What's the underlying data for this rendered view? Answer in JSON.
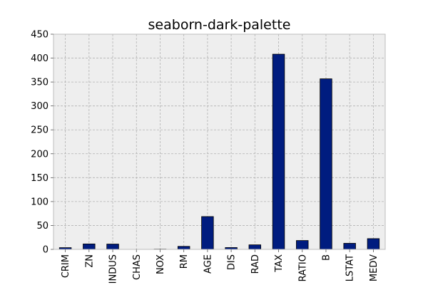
{
  "chart_data": {
    "type": "bar",
    "title": "seaborn-dark-palette",
    "xlabel": "",
    "ylabel": "",
    "categories": [
      "CRIM",
      "ZN",
      "INDUS",
      "CHAS",
      "NOX",
      "RM",
      "AGE",
      "DIS",
      "RAD",
      "TAX",
      "RATIO",
      "B",
      "LSTAT",
      "MEDV"
    ],
    "values": [
      3.6,
      11.4,
      11.1,
      0.07,
      0.55,
      6.3,
      68.6,
      3.8,
      9.5,
      408.2,
      18.5,
      356.7,
      12.7,
      22.5
    ],
    "ylim": [
      0,
      450
    ],
    "yticks": [
      0,
      50,
      100,
      150,
      200,
      250,
      300,
      350,
      400,
      450
    ],
    "grid": true,
    "legend": "none",
    "colors": {
      "bar": "#001c7f",
      "bar_edge": "#000000",
      "plot_background": "#eeeeee",
      "grid": "#b2b2b2",
      "axes_edge": "#bcbcbc",
      "figure_background": "#ffffff"
    }
  }
}
